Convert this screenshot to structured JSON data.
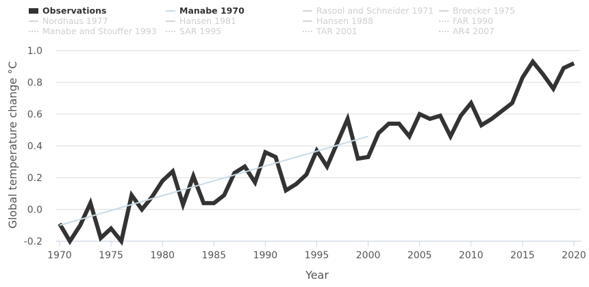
{
  "chart_data": {
    "type": "line",
    "xlabel": "Year",
    "ylabel": "Global temperature change °C",
    "xlim": [
      1970,
      2020.5
    ],
    "ylim": [
      -0.2,
      1.0
    ],
    "xticks": [
      "1970",
      "1975",
      "1980",
      "1985",
      "1990",
      "1995",
      "2000",
      "2005",
      "2010",
      "2015",
      "2020"
    ],
    "yticks": [
      "1.0",
      "0.8",
      "0.6",
      "0.4",
      "0.2",
      "0.0",
      "-0.2"
    ],
    "grid": "horizontal",
    "legend_placement": "top",
    "legend": [
      {
        "name": "Observations",
        "style": "thick",
        "color": "#333333",
        "active": true
      },
      {
        "name": "Manabe 1970",
        "style": "solid",
        "color": "#c9dbe6",
        "active": true
      },
      {
        "name": "Rasool and Schneider 1971",
        "style": "solid",
        "color": "#d6d6d6",
        "active": false
      },
      {
        "name": "Broecker 1975",
        "style": "solid",
        "color": "#d6d6d6",
        "active": false
      },
      {
        "name": "Nordhaus 1977",
        "style": "solid",
        "color": "#d6d6d6",
        "active": false
      },
      {
        "name": "Hansen 1981",
        "style": "solid",
        "color": "#d6d6d6",
        "active": false
      },
      {
        "name": "Hansen 1988",
        "style": "solid",
        "color": "#d6d6d6",
        "active": false
      },
      {
        "name": "FAR 1990",
        "style": "dotted",
        "color": "#d6d6d6",
        "active": false
      },
      {
        "name": "Manabe and Stouffer 1993",
        "style": "dotted",
        "color": "#d6d6d6",
        "active": false
      },
      {
        "name": "SAR 1995",
        "style": "dotted",
        "color": "#d6d6d6",
        "active": false
      },
      {
        "name": "TAR 2001",
        "style": "dotted",
        "color": "#d6d6d6",
        "active": false
      },
      {
        "name": "AR4 2007",
        "style": "dotted",
        "color": "#d6d6d6",
        "active": false
      }
    ],
    "series": [
      {
        "name": "Observations",
        "color": "#333333",
        "x": [
          1970,
          1971,
          1972,
          1973,
          1974,
          1975,
          1976,
          1977,
          1978,
          1979,
          1980,
          1981,
          1982,
          1983,
          1984,
          1985,
          1986,
          1987,
          1988,
          1989,
          1990,
          1991,
          1992,
          1993,
          1994,
          1995,
          1996,
          1997,
          1998,
          1999,
          2000,
          2001,
          2002,
          2003,
          2004,
          2005,
          2006,
          2007,
          2008,
          2009,
          2010,
          2011,
          2012,
          2013,
          2014,
          2015,
          2016,
          2017,
          2018,
          2019,
          2020
        ],
        "y": [
          -0.09,
          -0.2,
          -0.1,
          0.04,
          -0.18,
          -0.12,
          -0.2,
          0.09,
          0.0,
          0.08,
          0.18,
          0.24,
          0.03,
          0.21,
          0.04,
          0.04,
          0.09,
          0.23,
          0.27,
          0.17,
          0.36,
          0.33,
          0.12,
          0.16,
          0.22,
          0.37,
          0.27,
          0.42,
          0.57,
          0.32,
          0.33,
          0.48,
          0.54,
          0.54,
          0.46,
          0.6,
          0.57,
          0.59,
          0.46,
          0.59,
          0.67,
          0.53,
          0.57,
          0.62,
          0.67,
          0.83,
          0.93,
          0.85,
          0.76,
          0.89,
          0.92
        ]
      },
      {
        "name": "Manabe 1970",
        "color": "#c9dbe6",
        "x": [
          1970,
          2000
        ],
        "y": [
          -0.1,
          0.46
        ]
      }
    ]
  }
}
